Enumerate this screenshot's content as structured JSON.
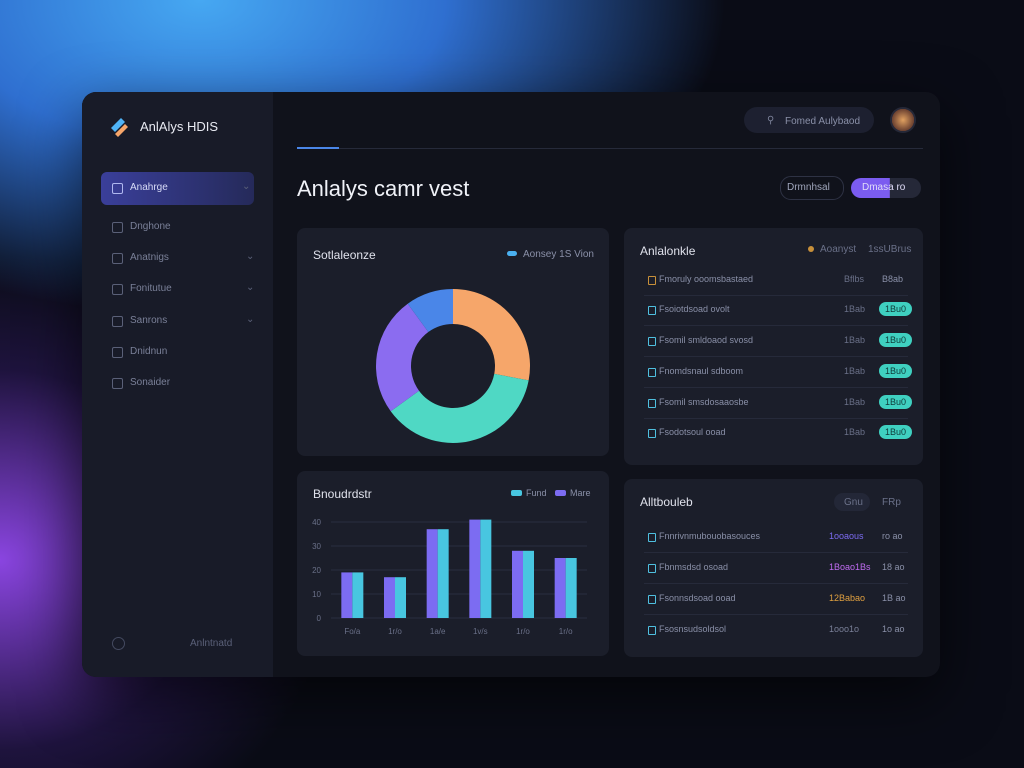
{
  "app": {
    "name": "AnlAlys HDIS"
  },
  "search": {
    "placeholder": "Fomed Aulybaod"
  },
  "nav": [
    "Anahrge",
    "Dnghone",
    "Anatnigs",
    "Fonitutue",
    "Sanrons",
    "Dnidnun",
    "Sonaider"
  ],
  "sidebar_footer": "Anlntnatd",
  "page": {
    "title": "Anlalys camr vest",
    "buttons": [
      "Drmnhsal",
      "Dmasa ro"
    ]
  },
  "donut": {
    "title": "Sotlaleonze",
    "legend": "Aonsey 1S Vion",
    "segments": [
      {
        "color": "#f6a66a",
        "value": 28
      },
      {
        "color": "#4fd8c4",
        "value": 37
      },
      {
        "color": "#8b6cf0",
        "value": 25
      },
      {
        "color": "#4a86e8",
        "value": 10
      }
    ]
  },
  "bar_chart": {
    "title": "Bnoudrdstr",
    "categories": [
      "Fo/a",
      "1r/o",
      "1a/e",
      "1v/s",
      "1r/o",
      "1r/o"
    ],
    "series": [
      {
        "name": "Mare",
        "color": "#7c6cf2",
        "values": [
          19,
          17,
          37,
          41,
          28,
          25
        ]
      },
      {
        "name": "Fund",
        "color": "#48c6e0",
        "values": [
          19,
          17,
          37,
          41,
          28,
          25
        ]
      }
    ],
    "ylim": [
      0,
      45
    ],
    "yticks": [
      0,
      10,
      20,
      30,
      40
    ]
  },
  "activity": {
    "title": "Anlalonkle",
    "filters": [
      "Aoanyst",
      "1ssUBrus"
    ],
    "rows": [
      {
        "label": "Fmoruly ooomsbastaed",
        "value": "Bflbs",
        "status": "B8ab"
      },
      {
        "label": "Fsoiotdsoad ovolt",
        "value": "1Bab",
        "status": "1Bu0"
      },
      {
        "label": "Fsomil smldoaod svosd",
        "value": "1Bab",
        "status": "1Bu0"
      },
      {
        "label": "Fnomdsnaul sdboom",
        "value": "1Bab",
        "status": "1Bu0"
      },
      {
        "label": "Fsomil smsdosaaosbe",
        "value": "1Bab",
        "status": "1Bu0"
      },
      {
        "label": "Fsodotsoul ooad",
        "value": "1Bab",
        "status": "1Bu0"
      }
    ]
  },
  "attributes": {
    "title": "Alltbouleb",
    "filters": [
      "Gnu",
      "FRp"
    ],
    "rows": [
      {
        "label": "Fnnrivnmubouobasouces",
        "value": "1ooaous",
        "extra": "ro ao"
      },
      {
        "label": "Fbnmsdsd osoad",
        "value": "1Boao1Bs",
        "extra": "18 ao"
      },
      {
        "label": "Fsonnsdsoad ooad",
        "value": "12Babao",
        "extra": "1B ao"
      },
      {
        "label": "Fsosnsudsoldsol",
        "value": "1ooo1o",
        "extra": "1o ao"
      }
    ]
  }
}
